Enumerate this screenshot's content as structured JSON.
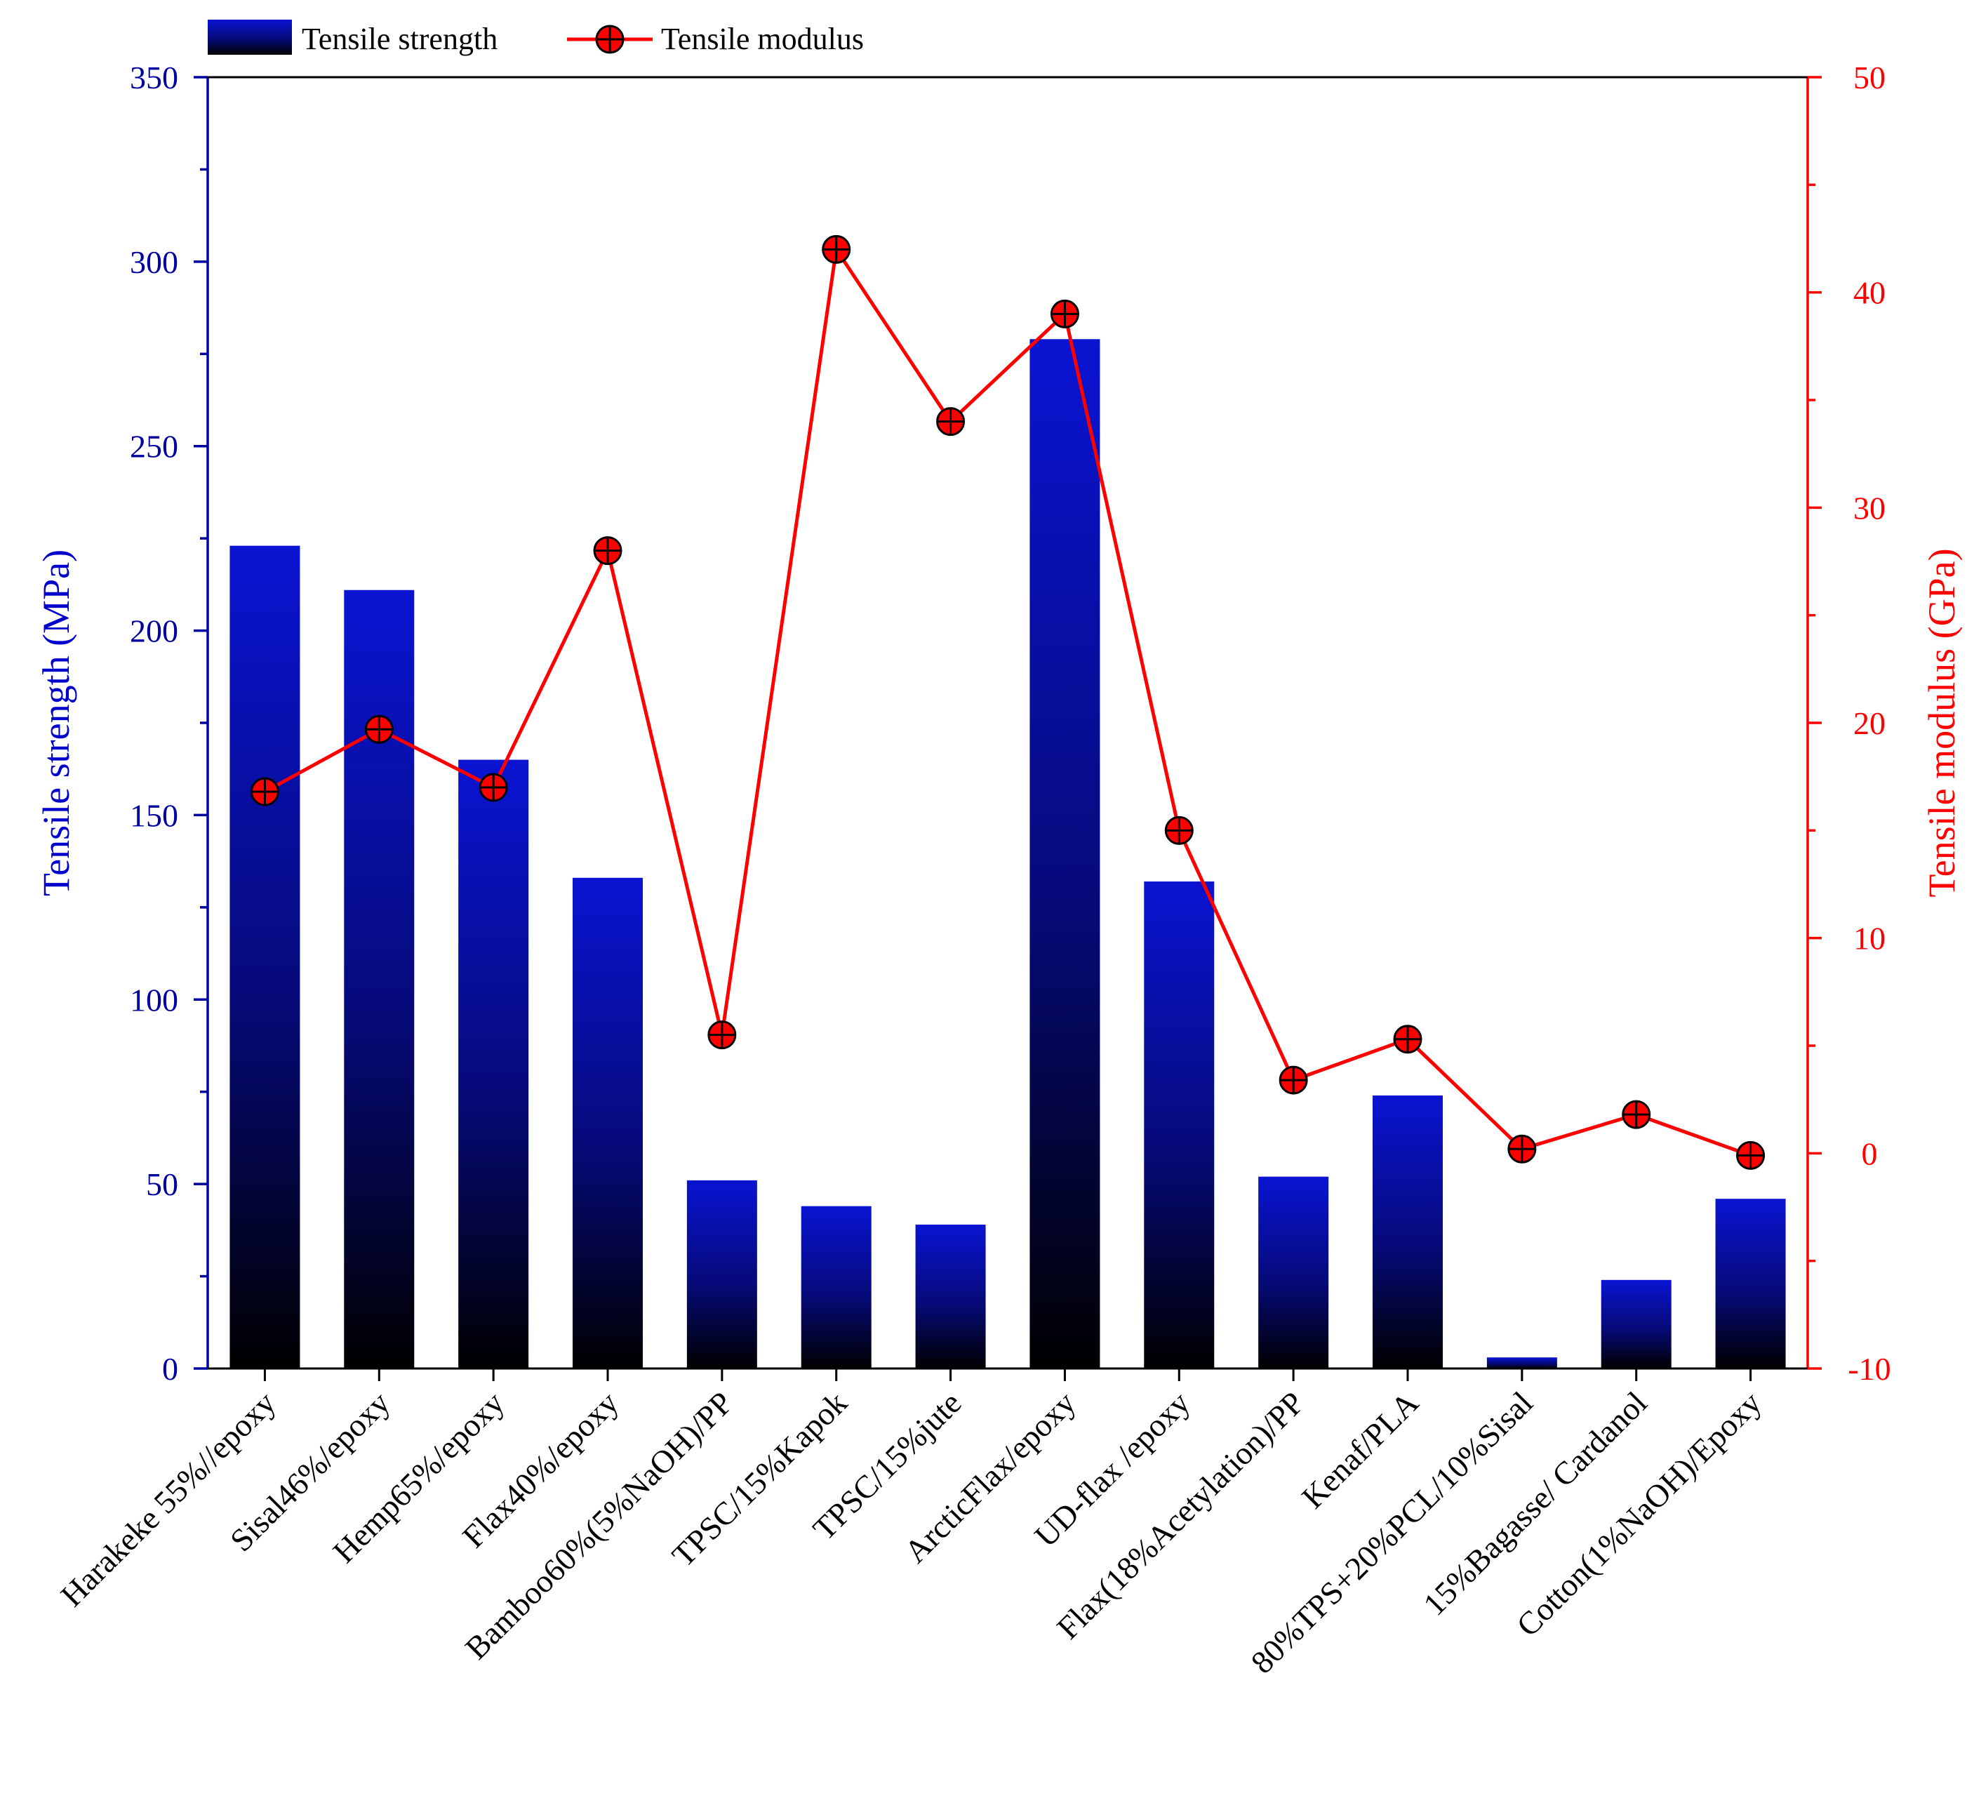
{
  "chart_data": {
    "type": "bar",
    "categories": [
      "Harakeke 55%//epoxy",
      "Sisal46%/epoxy",
      "Hemp65%/epoxy",
      "Flax40%/epoxy",
      "Bamboo60%(5%NaOH)/PP",
      "TPSC/15%Kapok",
      "TPSC/15%jute",
      "ArcticFlax/epoxy",
      "UD-flax /epoxy",
      "Flax(18%Acetylation)/PP",
      "Kenaf/PLA",
      "80%TPS+20%PCL/10%Sisal",
      "15%Bagasse/ Cardanol",
      "Cotton(1%NaOH)/Epoxy"
    ],
    "series": [
      {
        "name": "Tensile strength",
        "type": "bar",
        "axis": "left",
        "color": "#0000cc",
        "values": [
          223,
          211,
          165,
          133,
          51,
          44,
          39,
          279,
          132,
          52,
          74,
          3,
          24,
          46
        ]
      },
      {
        "name": "Tensile modulus",
        "type": "line",
        "axis": "right",
        "color": "#ff0000",
        "values": [
          16.8,
          19.7,
          17.0,
          28.0,
          5.5,
          42.0,
          34.0,
          39.0,
          15.0,
          3.4,
          5.3,
          0.2,
          1.8,
          -0.1
        ]
      }
    ],
    "ylabel": "Tensile strength (MPa)",
    "y2label": "Tensile modulus (GPa)",
    "ylim": [
      0,
      350
    ],
    "y2lim": [
      -10,
      50
    ],
    "yticks": [
      0,
      50,
      100,
      150,
      200,
      250,
      300,
      350
    ],
    "y2ticks": [
      -10,
      0,
      10,
      20,
      30,
      40,
      50
    ],
    "legend": [
      "Tensile strength",
      "Tensile modulus"
    ],
    "legend_position": "top-left",
    "grid": false
  }
}
